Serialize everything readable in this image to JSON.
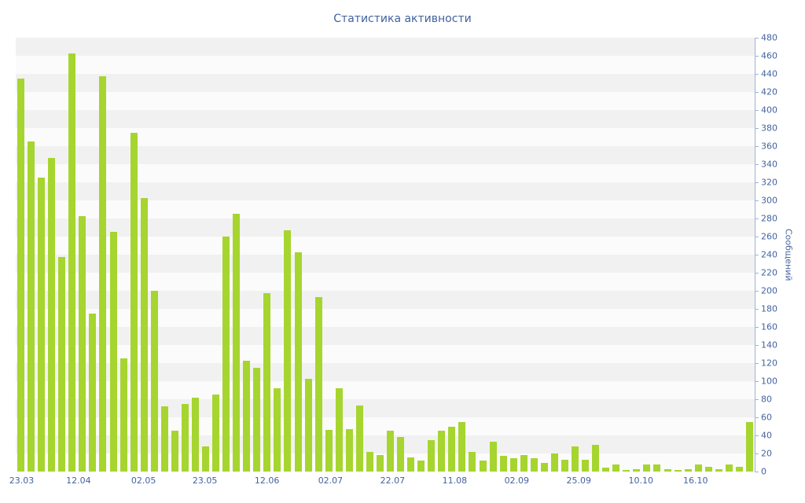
{
  "chart_data": {
    "type": "bar",
    "title": "Статистика активности",
    "ylabel": "Сообщений",
    "xlabel": "",
    "ylim": [
      0,
      480
    ],
    "y_tick_step": 20,
    "grid": "horizontal-striped-bands",
    "legend": "none",
    "bar_color": "#a6d52f",
    "x_tick_labels": [
      "23.03",
      "12.04",
      "02.05",
      "23.05",
      "12.06",
      "02.07",
      "22.07",
      "11.08",
      "02.09",
      "25.09",
      "10.10",
      "16.10"
    ],
    "x_tick_positions": [
      0.008,
      0.085,
      0.173,
      0.256,
      0.34,
      0.426,
      0.51,
      0.594,
      0.678,
      0.762,
      0.846,
      0.92
    ],
    "values": [
      435,
      365,
      325,
      347,
      237,
      463,
      283,
      175,
      437,
      265,
      125,
      375,
      303,
      200,
      72,
      45,
      75,
      82,
      28,
      85,
      260,
      285,
      123,
      115,
      197,
      92,
      267,
      243,
      103,
      193,
      46,
      92,
      47,
      73,
      22,
      18,
      45,
      38,
      16,
      12,
      35,
      45,
      50,
      55,
      22,
      12,
      33,
      17,
      15,
      18,
      15,
      10,
      20,
      13,
      28,
      13,
      30,
      4,
      8,
      2,
      3,
      8,
      8,
      3,
      2,
      3,
      8,
      5,
      3,
      8,
      5,
      55
    ]
  },
  "colors": {
    "title_text": "#40619f",
    "tick_text": "#44639e",
    "axis_line": "#9db3d4",
    "band_gray": "#f1f1f1",
    "band_light": "#fbfbfb",
    "bar_fill": "#a6d52f"
  }
}
